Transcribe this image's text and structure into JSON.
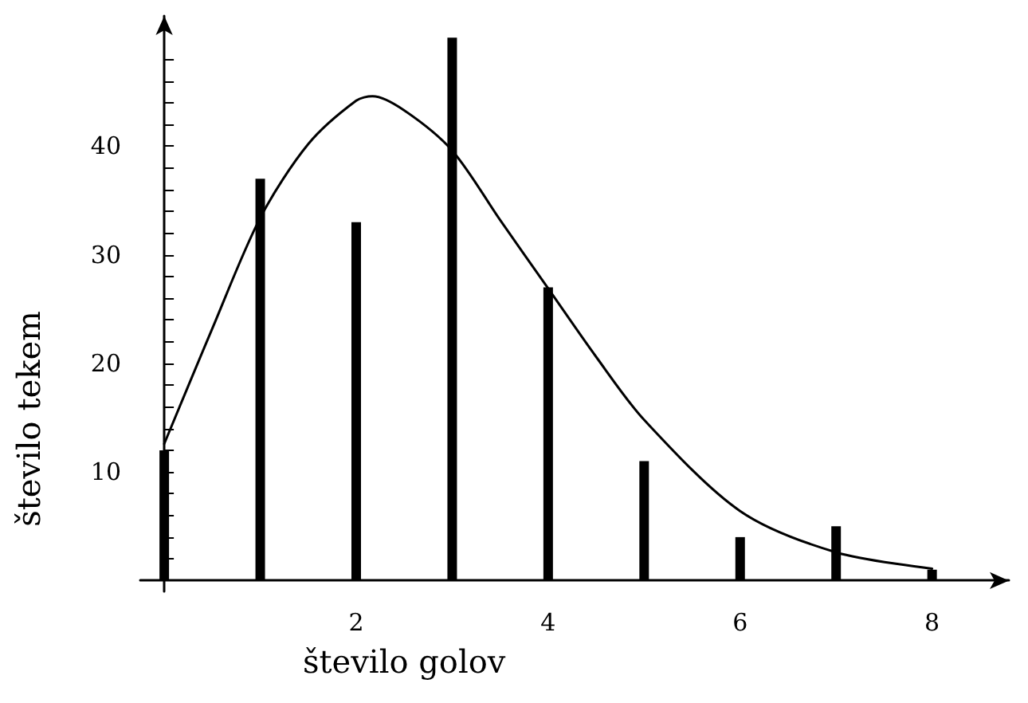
{
  "chart_data": {
    "type": "bar",
    "xlabel": "število golov",
    "ylabel": "število tekem",
    "xlim": [
      -0.25,
      8.8
    ],
    "ylim": [
      -1,
      52
    ],
    "xticks": [
      {
        "value": 1,
        "label": null
      },
      2,
      {
        "value": 3,
        "label": null
      },
      4,
      {
        "value": 5,
        "label": null
      },
      6,
      {
        "value": 7,
        "label": null
      },
      8
    ],
    "yticks": [
      {
        "value": 2,
        "label": null
      },
      {
        "value": 4,
        "label": null
      },
      {
        "value": 6,
        "label": null
      },
      {
        "value": 8,
        "label": null
      },
      10,
      {
        "value": 12,
        "label": null
      },
      {
        "value": 14,
        "label": null
      },
      {
        "value": 16,
        "label": null
      },
      {
        "value": 18,
        "label": null
      },
      20,
      {
        "value": 22,
        "label": null
      },
      {
        "value": 24,
        "label": null
      },
      {
        "value": 26,
        "label": null
      },
      {
        "value": 28,
        "label": null
      },
      30,
      {
        "value": 32,
        "label": null
      },
      {
        "value": 34,
        "label": null
      },
      {
        "value": 36,
        "label": null
      },
      {
        "value": 38,
        "label": null
      },
      40,
      {
        "value": 42,
        "label": null
      },
      {
        "value": 44,
        "label": null
      },
      {
        "value": 46,
        "label": null
      },
      {
        "value": 48,
        "label": null
      }
    ],
    "grid": false,
    "marker": "none",
    "line_style": "solid",
    "series": [
      {
        "color": "#000000",
        "x": [
          0,
          1,
          2,
          3,
          4,
          5,
          6,
          7,
          8
        ],
        "values": [
          12,
          37,
          33,
          50,
          27,
          11,
          4,
          5,
          1
        ]
      },
      {
        "type": "line",
        "color": "#000000",
        "x": [
          0,
          0.5,
          1,
          1.5,
          2,
          2.17,
          2.5,
          3,
          3.5,
          4,
          4.5,
          5,
          6,
          7,
          8
        ],
        "values": [
          12.6,
          23.2,
          33.4,
          40.2,
          44.2,
          44.6,
          43.3,
          39.6,
          33.2,
          26.9,
          20.6,
          14.8,
          6.4,
          2.6,
          1.1
        ]
      }
    ]
  }
}
